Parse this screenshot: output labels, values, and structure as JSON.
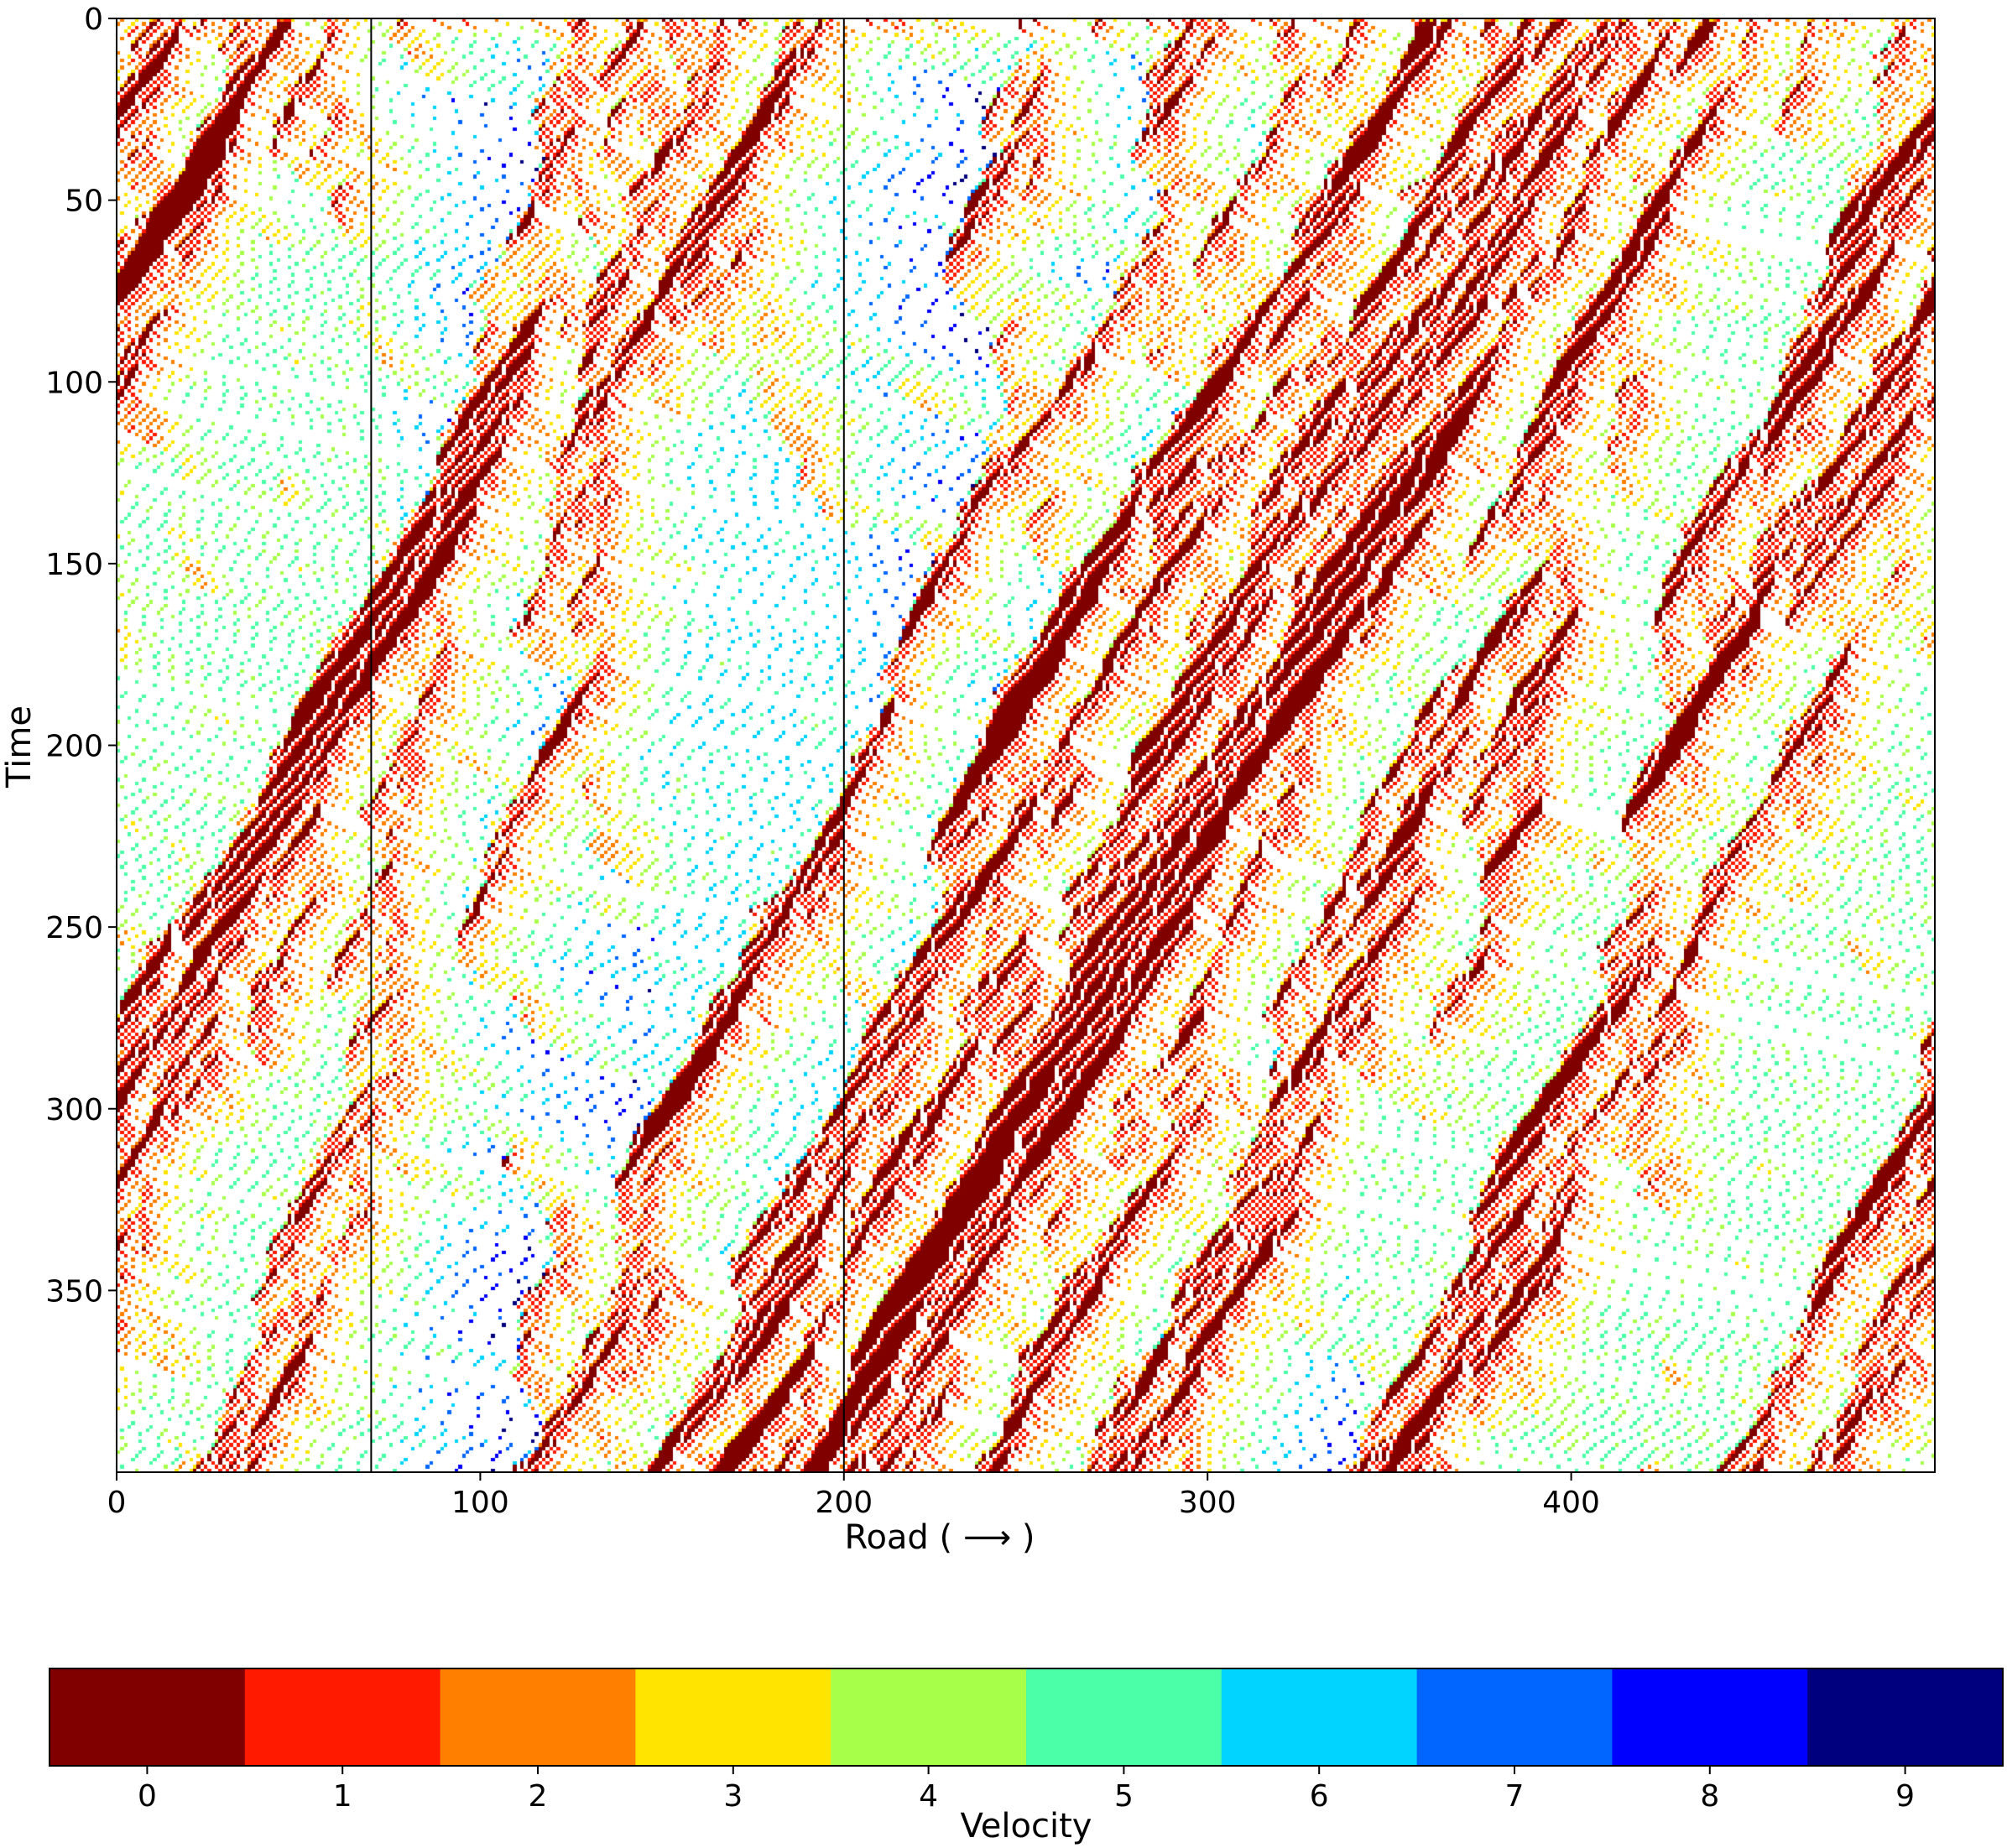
{
  "chart_data": {
    "type": "heatmap",
    "title": "",
    "xlabel": "Road ( ⟶ )",
    "ylabel": "Time",
    "xlim": [
      0,
      500
    ],
    "ylim": [
      400,
      0
    ],
    "x_ticks": [
      "0",
      "100",
      "200",
      "300",
      "400"
    ],
    "y_ticks": [
      "0",
      "50",
      "100",
      "150",
      "200",
      "250",
      "300",
      "350"
    ],
    "x_tick_values": [
      0,
      100,
      200,
      300,
      400
    ],
    "y_tick_values": [
      0,
      50,
      100,
      150,
      200,
      250,
      300,
      350
    ],
    "vertical_lines_x": [
      70,
      200
    ],
    "grid": false,
    "colorbar": {
      "label": "Velocity",
      "orientation": "horizontal",
      "placement": "bottom",
      "values": [
        0,
        1,
        2,
        3,
        4,
        5,
        6,
        7,
        8,
        9
      ],
      "tick_labels": [
        "0",
        "1",
        "2",
        "3",
        "4",
        "5",
        "6",
        "7",
        "8",
        "9"
      ],
      "colors": [
        "#800000",
        "#ff1a00",
        "#ff8000",
        "#ffe400",
        "#a8ff4a",
        "#4affa8",
        "#00d4ff",
        "#0066ff",
        "#0000ff",
        "#00007f"
      ]
    },
    "description_of_data": "Space-time diagram of a cellular automaton traffic model: each dot is a car at road cell x and time t, colored by velocity 0-9. Congestion bands (velocity 0-2) propagate diagonally; free-flow regions (velocity 6-9) appear between x=70-140 and x=200-340."
  }
}
